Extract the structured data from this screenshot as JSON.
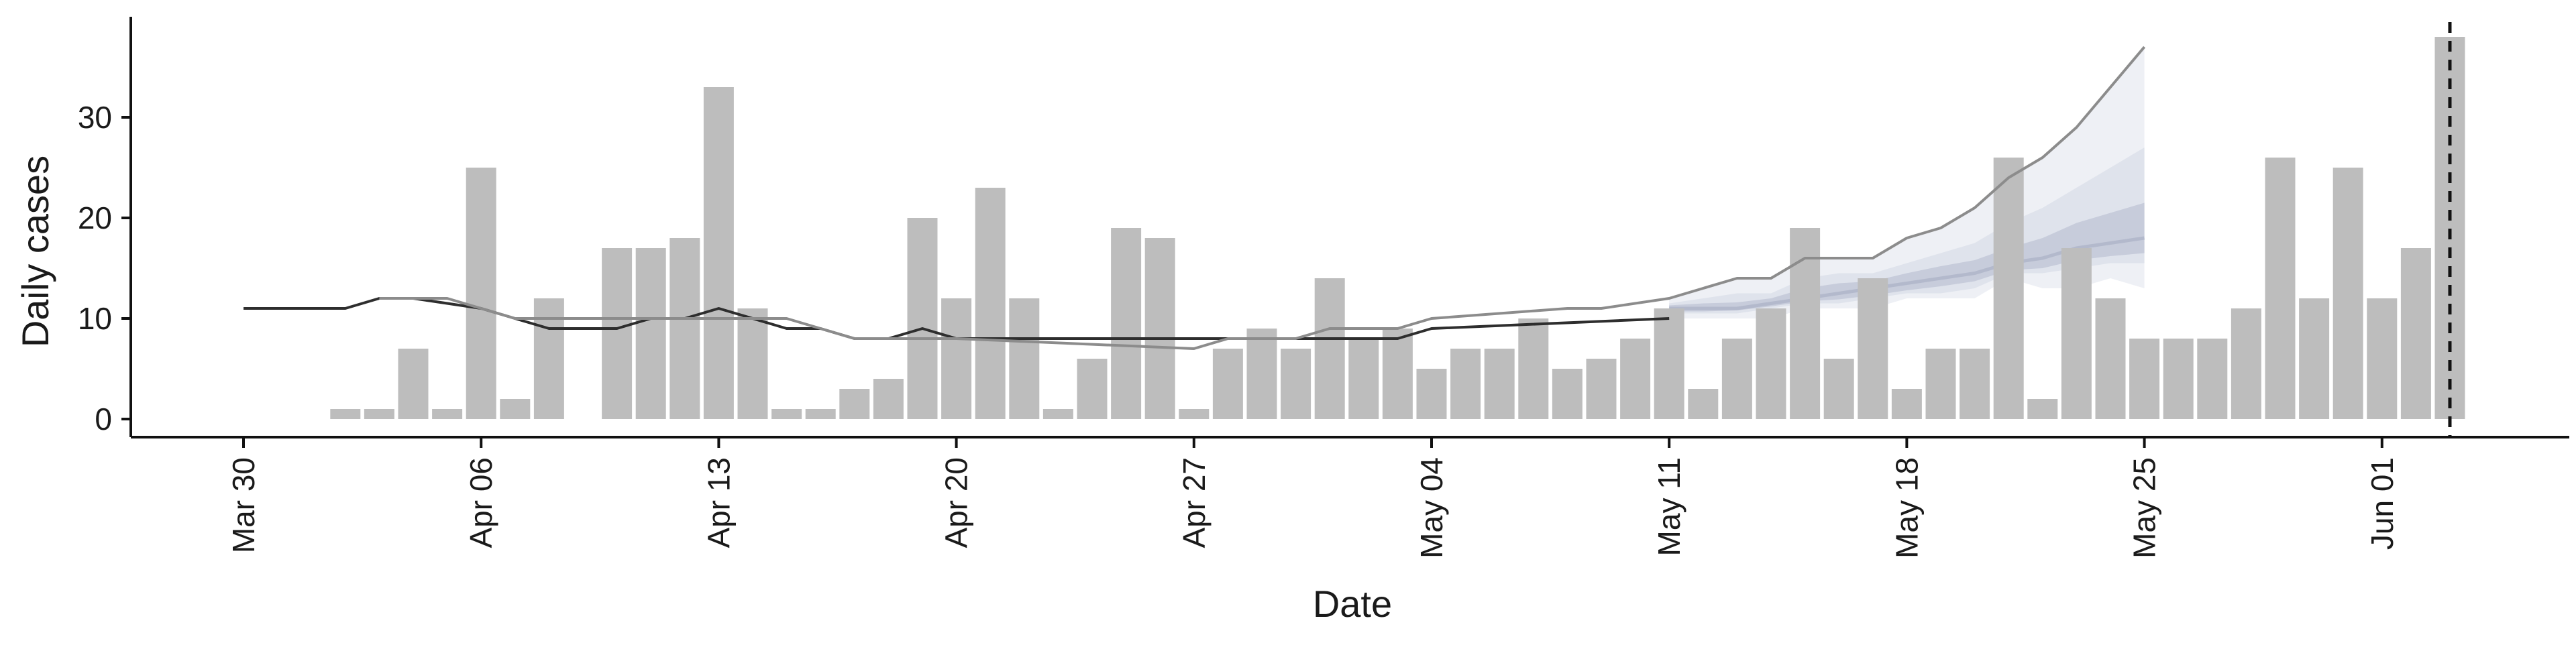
{
  "chart_data": {
    "type": "bar",
    "xlabel": "Date",
    "ylabel": "Daily cases",
    "x_start": "2020-03-30",
    "x_ticks": [
      "Mar 30",
      "Apr 06",
      "Apr 13",
      "Apr 20",
      "Apr 27",
      "May 04",
      "May 11",
      "May 18",
      "May 25",
      "Jun 01"
    ],
    "y_ticks": [
      "0",
      "10",
      "20",
      "30"
    ],
    "ylim": [
      -1.8,
      40
    ],
    "grid": false,
    "legend": "none",
    "bars": {
      "x": [
        "2020-04-02",
        "2020-04-03",
        "2020-04-04",
        "2020-04-05",
        "2020-04-06",
        "2020-04-07",
        "2020-04-08",
        "2020-04-10",
        "2020-04-11",
        "2020-04-12",
        "2020-04-13",
        "2020-04-14",
        "2020-04-15",
        "2020-04-16",
        "2020-04-17",
        "2020-04-18",
        "2020-04-19",
        "2020-04-20",
        "2020-04-21",
        "2020-04-22",
        "2020-04-23",
        "2020-04-24",
        "2020-04-25",
        "2020-04-26",
        "2020-04-27",
        "2020-04-28",
        "2020-04-29",
        "2020-04-30",
        "2020-05-01",
        "2020-05-02",
        "2020-05-03",
        "2020-05-04",
        "2020-05-05",
        "2020-05-06",
        "2020-05-07",
        "2020-05-08",
        "2020-05-09",
        "2020-05-10",
        "2020-05-11",
        "2020-05-12",
        "2020-05-13",
        "2020-05-14",
        "2020-05-15",
        "2020-05-16",
        "2020-05-17",
        "2020-05-18",
        "2020-05-19",
        "2020-05-20",
        "2020-05-21",
        "2020-05-22",
        "2020-05-23",
        "2020-05-24",
        "2020-05-25",
        "2020-05-26",
        "2020-05-27",
        "2020-05-28",
        "2020-05-29",
        "2020-05-30",
        "2020-05-31",
        "2020-06-01",
        "2020-06-02",
        "2020-06-03"
      ],
      "values": [
        1,
        1,
        7,
        1,
        25,
        2,
        12,
        17,
        17,
        18,
        33,
        11,
        1,
        1,
        3,
        4,
        20,
        12,
        23,
        12,
        1,
        6,
        19,
        18,
        1,
        7,
        9,
        7,
        14,
        8,
        9,
        5,
        7,
        7,
        10,
        5,
        6,
        8,
        11,
        3,
        8,
        11,
        19,
        6,
        14,
        3,
        7,
        7,
        26,
        2,
        17,
        12,
        8,
        8,
        8,
        11,
        26,
        12,
        25,
        12,
        17,
        38
      ]
    },
    "lines": [
      {
        "color": "#2e2e2e",
        "x": [
          "2020-03-30",
          "2020-04-02",
          "2020-04-03",
          "2020-04-04",
          "2020-04-06",
          "2020-04-08",
          "2020-04-10",
          "2020-04-11",
          "2020-04-12",
          "2020-04-13",
          "2020-04-15",
          "2020-04-16",
          "2020-04-17",
          "2020-04-18",
          "2020-04-19",
          "2020-04-20",
          "2020-04-27",
          "2020-04-28",
          "2020-05-02",
          "2020-05-03",
          "2020-05-04",
          "2020-05-11"
        ],
        "y": [
          11,
          11,
          12,
          12,
          11,
          9,
          9,
          10,
          10,
          11,
          9,
          9,
          8,
          8,
          9,
          8,
          8,
          8,
          8,
          8,
          9,
          10
        ]
      },
      {
        "color": "#8c8c8c",
        "x": [
          "2020-04-03",
          "2020-04-05",
          "2020-04-06",
          "2020-04-07",
          "2020-04-08",
          "2020-04-10",
          "2020-04-13",
          "2020-04-14",
          "2020-04-15",
          "2020-04-17",
          "2020-04-18",
          "2020-04-19",
          "2020-04-20",
          "2020-04-27",
          "2020-04-28",
          "2020-04-30",
          "2020-05-01",
          "2020-05-03",
          "2020-05-04",
          "2020-05-08",
          "2020-05-09",
          "2020-05-11",
          "2020-05-12",
          "2020-05-13",
          "2020-05-14",
          "2020-05-15",
          "2020-05-17",
          "2020-05-18",
          "2020-05-19",
          "2020-05-20",
          "2020-05-21",
          "2020-05-22",
          "2020-05-23",
          "2020-05-24",
          "2020-05-25"
        ],
        "y": [
          12,
          12,
          11,
          10,
          10,
          10,
          10,
          10,
          10,
          8,
          8,
          8,
          8,
          7,
          8,
          8,
          9,
          9,
          10,
          11,
          11,
          12,
          13,
          14,
          14,
          16,
          16,
          18,
          19,
          21,
          24,
          26,
          29,
          33,
          37
        ]
      }
    ],
    "forecast_bands": {
      "x": [
        "2020-05-11",
        "2020-05-12",
        "2020-05-13",
        "2020-05-14",
        "2020-05-15",
        "2020-05-16",
        "2020-05-17",
        "2020-05-18",
        "2020-05-19",
        "2020-05-20",
        "2020-05-21",
        "2020-05-22",
        "2020-05-23",
        "2020-05-24",
        "2020-05-25"
      ],
      "median": [
        11,
        11,
        11,
        11.5,
        12,
        12.5,
        13,
        13.5,
        14,
        14.5,
        15.5,
        16,
        17,
        17.5,
        18
      ],
      "bands": [
        {
          "color": "#eef0f5",
          "lower": [
            10,
            10,
            10,
            10,
            11,
            11,
            11,
            12,
            12,
            12,
            14,
            13,
            13,
            14,
            13
          ],
          "upper": [
            12,
            13,
            14,
            14,
            16,
            16,
            16,
            18,
            19,
            21,
            24,
            26,
            29,
            33,
            37
          ]
        },
        {
          "color": "#dfe3ec",
          "lower": [
            10.5,
            10.5,
            10.5,
            11,
            11.5,
            11.5,
            12,
            12.5,
            12.5,
            13,
            14.5,
            14.5,
            15,
            15.5,
            15.5
          ],
          "upper": [
            11.5,
            12,
            12.5,
            12.5,
            14,
            14.5,
            14.5,
            15.5,
            16.5,
            17.5,
            19.5,
            21,
            23,
            25,
            27
          ]
        },
        {
          "color": "#c7ccdb",
          "lower": [
            10.7,
            10.7,
            10.8,
            11.2,
            11.7,
            11.9,
            12.3,
            12.8,
            13.2,
            13.7,
            14.8,
            15,
            15.8,
            16.2,
            16.5
          ],
          "upper": [
            11.3,
            11.5,
            11.6,
            12,
            13,
            13.5,
            13.7,
            14.5,
            15.2,
            15.8,
            17,
            18,
            19.5,
            20.5,
            21.5
          ]
        }
      ]
    },
    "vline": {
      "x": "2020-06-03",
      "style": "dashed"
    }
  }
}
